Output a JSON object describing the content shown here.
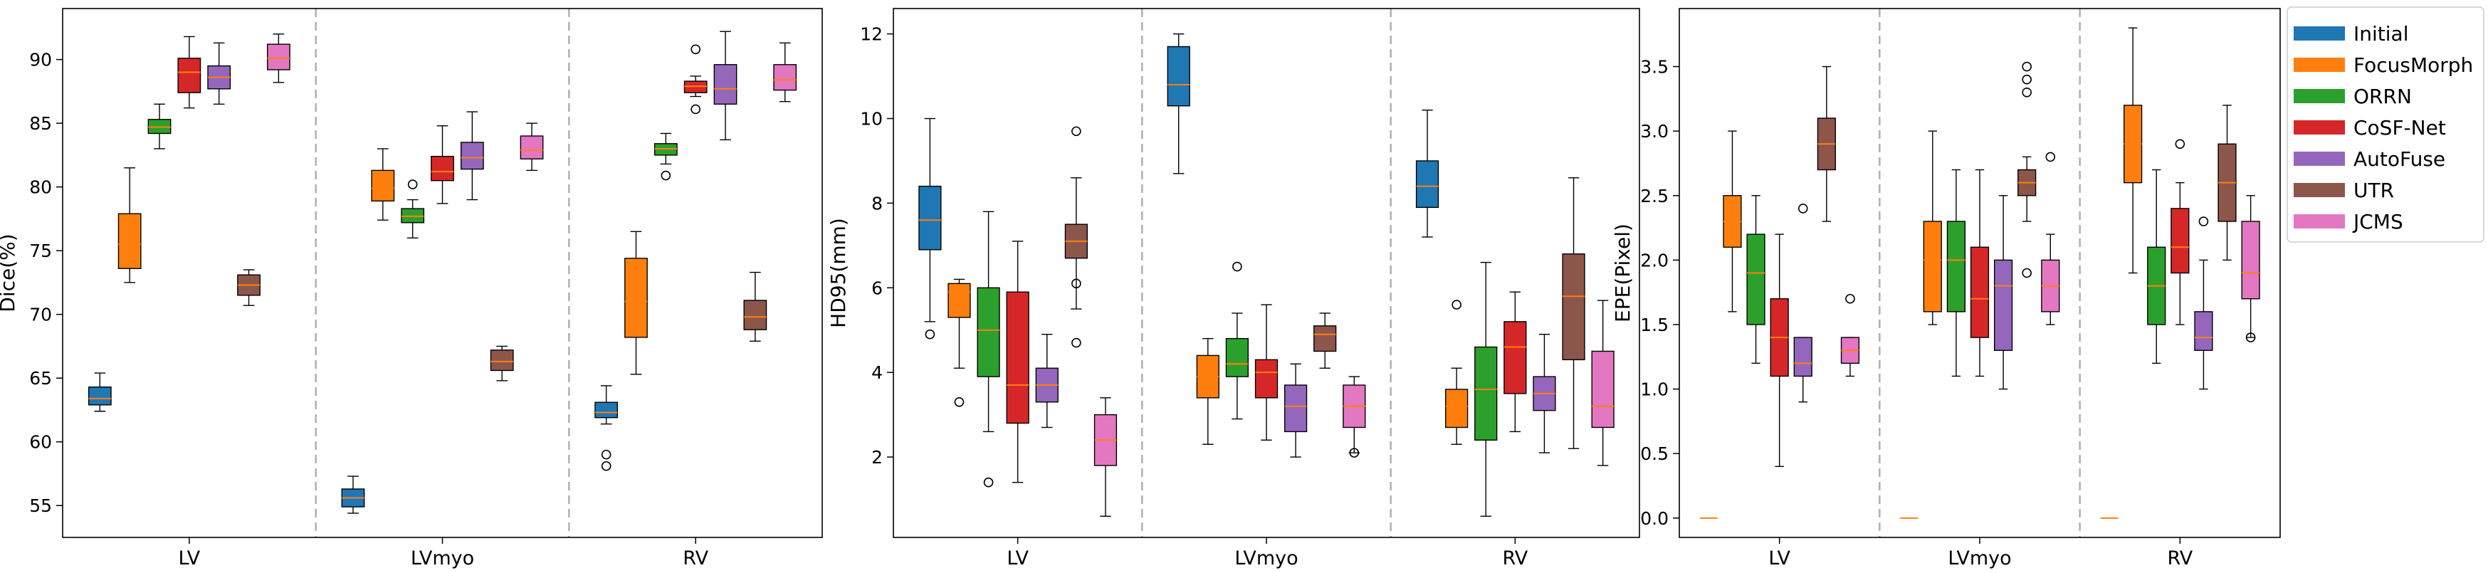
{
  "legend": {
    "placement": "right",
    "entries": [
      {
        "name": "Initial",
        "color": "#1f77b4"
      },
      {
        "name": "FocusMorph",
        "color": "#ff7f0e"
      },
      {
        "name": "ORRN",
        "color": "#2ca02c"
      },
      {
        "name": "CoSF-Net",
        "color": "#d62728"
      },
      {
        "name": "AutoFuse",
        "color": "#9467bd"
      },
      {
        "name": "UTR",
        "color": "#8c564b"
      },
      {
        "name": "JCMS",
        "color": "#e377c2"
      }
    ]
  },
  "chart_data": [
    {
      "type": "box",
      "ylabel": "Dice(%)",
      "xlabel": "",
      "title": "",
      "categories": [
        "LV",
        "LVmyo",
        "RV"
      ],
      "ylim": [
        52.5,
        94
      ],
      "yticks": [
        55,
        60,
        65,
        70,
        75,
        80,
        85,
        90
      ],
      "grid": false,
      "series": [
        {
          "name": "Initial",
          "boxes": [
            {
              "min": 62.4,
              "q1": 62.9,
              "median": 63.4,
              "q3": 64.3,
              "max": 65.4,
              "outliers": []
            },
            {
              "min": 54.4,
              "q1": 54.9,
              "median": 55.6,
              "q3": 56.3,
              "max": 57.3,
              "outliers": []
            },
            {
              "min": 61.4,
              "q1": 61.9,
              "median": 62.3,
              "q3": 63.1,
              "max": 64.4,
              "outliers": [
                59.0,
                58.1
              ]
            }
          ]
        },
        {
          "name": "FocusMorph",
          "boxes": [
            {
              "min": 72.5,
              "q1": 73.6,
              "median": 75.5,
              "q3": 77.9,
              "max": 81.5,
              "outliers": []
            },
            {
              "min": 77.4,
              "q1": 78.9,
              "median": 79.9,
              "q3": 81.3,
              "max": 83.0,
              "outliers": []
            },
            {
              "min": 65.3,
              "q1": 68.2,
              "median": 71.0,
              "q3": 74.4,
              "max": 76.5,
              "outliers": []
            }
          ]
        },
        {
          "name": "ORRN",
          "boxes": [
            {
              "min": 83.0,
              "q1": 84.2,
              "median": 84.7,
              "q3": 85.3,
              "max": 86.5,
              "outliers": []
            },
            {
              "min": 76.0,
              "q1": 77.2,
              "median": 77.7,
              "q3": 78.3,
              "max": 79.0,
              "outliers": [
                80.2
              ]
            },
            {
              "min": 81.8,
              "q1": 82.5,
              "median": 83.0,
              "q3": 83.4,
              "max": 84.2,
              "outliers": [
                80.9
              ]
            }
          ]
        },
        {
          "name": "CoSF-Net",
          "boxes": [
            {
              "min": 86.2,
              "q1": 87.4,
              "median": 89.0,
              "q3": 90.1,
              "max": 91.8,
              "outliers": []
            },
            {
              "min": 78.7,
              "q1": 80.5,
              "median": 81.2,
              "q3": 82.4,
              "max": 84.8,
              "outliers": []
            },
            {
              "min": 87.1,
              "q1": 87.4,
              "median": 87.9,
              "q3": 88.3,
              "max": 88.7,
              "outliers": [
                90.8,
                86.1
              ]
            }
          ]
        },
        {
          "name": "AutoFuse",
          "boxes": [
            {
              "min": 86.5,
              "q1": 87.7,
              "median": 88.6,
              "q3": 89.5,
              "max": 91.3,
              "outliers": []
            },
            {
              "min": 79.0,
              "q1": 81.4,
              "median": 82.3,
              "q3": 83.5,
              "max": 85.9,
              "outliers": []
            },
            {
              "min": 83.7,
              "q1": 86.5,
              "median": 87.7,
              "q3": 89.6,
              "max": 92.2,
              "outliers": []
            }
          ]
        },
        {
          "name": "UTR",
          "boxes": [
            {
              "min": 70.7,
              "q1": 71.5,
              "median": 72.3,
              "q3": 73.1,
              "max": 73.5,
              "outliers": []
            },
            {
              "min": 64.8,
              "q1": 65.6,
              "median": 66.3,
              "q3": 67.2,
              "max": 67.5,
              "outliers": []
            },
            {
              "min": 67.9,
              "q1": 68.8,
              "median": 69.8,
              "q3": 71.1,
              "max": 73.3,
              "outliers": []
            }
          ]
        },
        {
          "name": "JCMS",
          "boxes": [
            {
              "min": 88.2,
              "q1": 89.2,
              "median": 90.1,
              "q3": 91.2,
              "max": 92.0,
              "outliers": []
            },
            {
              "min": 81.3,
              "q1": 82.2,
              "median": 82.9,
              "q3": 84.0,
              "max": 85.0,
              "outliers": []
            },
            {
              "min": 86.7,
              "q1": 87.6,
              "median": 88.4,
              "q3": 89.6,
              "max": 91.3,
              "outliers": []
            }
          ]
        }
      ]
    },
    {
      "type": "box",
      "ylabel": "HD95(mm)",
      "xlabel": "",
      "title": "",
      "categories": [
        "LV",
        "LVmyo",
        "RV"
      ],
      "ylim": [
        0.1,
        12.6
      ],
      "yticks": [
        2,
        4,
        6,
        8,
        10,
        12
      ],
      "grid": false,
      "series": [
        {
          "name": "Initial",
          "boxes": [
            {
              "min": 5.2,
              "q1": 6.9,
              "median": 7.6,
              "q3": 8.4,
              "max": 10.0,
              "outliers": [
                4.9
              ]
            },
            {
              "min": 8.7,
              "q1": 10.3,
              "median": 10.8,
              "q3": 11.7,
              "max": 12.0,
              "outliers": []
            },
            {
              "min": 7.2,
              "q1": 7.9,
              "median": 8.4,
              "q3": 9.0,
              "max": 10.2,
              "outliers": []
            }
          ]
        },
        {
          "name": "FocusMorph",
          "boxes": [
            {
              "min": 4.1,
              "q1": 5.3,
              "median": 5.9,
              "q3": 6.1,
              "max": 6.2,
              "outliers": [
                3.3
              ]
            },
            {
              "min": 2.3,
              "q1": 3.4,
              "median": 3.9,
              "q3": 4.4,
              "max": 4.8,
              "outliers": []
            },
            {
              "min": 2.3,
              "q1": 2.7,
              "median": 3.2,
              "q3": 3.6,
              "max": 4.1,
              "outliers": [
                5.6
              ]
            }
          ]
        },
        {
          "name": "ORRN",
          "boxes": [
            {
              "min": 2.6,
              "q1": 3.9,
              "median": 5.0,
              "q3": 6.0,
              "max": 7.8,
              "outliers": [
                1.4
              ]
            },
            {
              "min": 2.9,
              "q1": 3.9,
              "median": 4.2,
              "q3": 4.8,
              "max": 5.4,
              "outliers": [
                6.5
              ]
            },
            {
              "min": 0.6,
              "q1": 2.4,
              "median": 3.6,
              "q3": 4.6,
              "max": 6.6,
              "outliers": []
            }
          ]
        },
        {
          "name": "CoSF-Net",
          "boxes": [
            {
              "min": 1.4,
              "q1": 2.8,
              "median": 3.7,
              "q3": 5.9,
              "max": 7.1,
              "outliers": []
            },
            {
              "min": 2.4,
              "q1": 3.4,
              "median": 4.0,
              "q3": 4.3,
              "max": 5.6,
              "outliers": []
            },
            {
              "min": 2.6,
              "q1": 3.5,
              "median": 4.6,
              "q3": 5.2,
              "max": 5.9,
              "outliers": []
            }
          ]
        },
        {
          "name": "AutoFuse",
          "boxes": [
            {
              "min": 2.7,
              "q1": 3.3,
              "median": 3.7,
              "q3": 4.1,
              "max": 4.9,
              "outliers": []
            },
            {
              "min": 2.0,
              "q1": 2.6,
              "median": 3.2,
              "q3": 3.7,
              "max": 4.2,
              "outliers": []
            },
            {
              "min": 2.1,
              "q1": 3.1,
              "median": 3.5,
              "q3": 3.9,
              "max": 4.9,
              "outliers": []
            }
          ]
        },
        {
          "name": "UTR",
          "boxes": [
            {
              "min": 5.5,
              "q1": 6.7,
              "median": 7.1,
              "q3": 7.5,
              "max": 8.6,
              "outliers": [
                9.7,
                4.7,
                6.1
              ]
            },
            {
              "min": 4.1,
              "q1": 4.5,
              "median": 4.9,
              "q3": 5.1,
              "max": 5.4,
              "outliers": []
            },
            {
              "min": 2.2,
              "q1": 4.3,
              "median": 5.8,
              "q3": 6.8,
              "max": 8.6,
              "outliers": []
            }
          ]
        },
        {
          "name": "JCMS",
          "boxes": [
            {
              "min": 0.6,
              "q1": 1.8,
              "median": 2.4,
              "q3": 3.0,
              "max": 3.4,
              "outliers": []
            },
            {
              "min": 2.1,
              "q1": 2.7,
              "median": 3.2,
              "q3": 3.7,
              "max": 3.9,
              "outliers": [
                2.1
              ]
            },
            {
              "min": 1.8,
              "q1": 2.7,
              "median": 3.2,
              "q3": 4.5,
              "max": 5.7,
              "outliers": []
            }
          ]
        }
      ]
    },
    {
      "type": "box",
      "ylabel": "EPE(Pixel)",
      "xlabel": "",
      "title": "",
      "categories": [
        "LV",
        "LVmyo",
        "RV"
      ],
      "ylim": [
        -0.15,
        3.95
      ],
      "yticks": [
        0.0,
        0.5,
        1.0,
        1.5,
        2.0,
        2.5,
        3.0,
        3.5
      ],
      "grid": false,
      "series": [
        {
          "name": "Initial",
          "boxes": [
            {
              "min": 0,
              "q1": 0,
              "median": 0,
              "q3": 0,
              "max": 0,
              "outliers": []
            },
            {
              "min": 0,
              "q1": 0,
              "median": 0,
              "q3": 0,
              "max": 0,
              "outliers": []
            },
            {
              "min": 0,
              "q1": 0,
              "median": 0,
              "q3": 0,
              "max": 0,
              "outliers": []
            }
          ]
        },
        {
          "name": "FocusMorph",
          "boxes": [
            {
              "min": 1.6,
              "q1": 2.1,
              "median": 2.3,
              "q3": 2.5,
              "max": 3.0,
              "outliers": []
            },
            {
              "min": 1.5,
              "q1": 1.6,
              "median": 2.0,
              "q3": 2.3,
              "max": 3.0,
              "outliers": []
            },
            {
              "min": 1.9,
              "q1": 2.6,
              "median": 2.9,
              "q3": 3.2,
              "max": 3.8,
              "outliers": []
            }
          ]
        },
        {
          "name": "ORRN",
          "boxes": [
            {
              "min": 1.2,
              "q1": 1.5,
              "median": 1.9,
              "q3": 2.2,
              "max": 2.5,
              "outliers": []
            },
            {
              "min": 1.1,
              "q1": 1.6,
              "median": 2.0,
              "q3": 2.3,
              "max": 2.7,
              "outliers": []
            },
            {
              "min": 1.2,
              "q1": 1.5,
              "median": 1.8,
              "q3": 2.1,
              "max": 2.7,
              "outliers": []
            }
          ]
        },
        {
          "name": "CoSF-Net",
          "boxes": [
            {
              "min": 0.4,
              "q1": 1.1,
              "median": 1.4,
              "q3": 1.7,
              "max": 2.2,
              "outliers": []
            },
            {
              "min": 1.1,
              "q1": 1.4,
              "median": 1.7,
              "q3": 2.1,
              "max": 2.7,
              "outliers": []
            },
            {
              "min": 1.5,
              "q1": 1.9,
              "median": 2.1,
              "q3": 2.4,
              "max": 2.6,
              "outliers": [
                2.9
              ]
            }
          ]
        },
        {
          "name": "AutoFuse",
          "boxes": [
            {
              "min": 0.9,
              "q1": 1.1,
              "median": 1.2,
              "q3": 1.4,
              "max": 1.4,
              "outliers": [
                2.4
              ]
            },
            {
              "min": 1.0,
              "q1": 1.3,
              "median": 1.8,
              "q3": 2.0,
              "max": 2.5,
              "outliers": []
            },
            {
              "min": 1.0,
              "q1": 1.3,
              "median": 1.4,
              "q3": 1.6,
              "max": 2.0,
              "outliers": [
                2.3
              ]
            }
          ]
        },
        {
          "name": "UTR",
          "boxes": [
            {
              "min": 2.3,
              "q1": 2.7,
              "median": 2.9,
              "q3": 3.1,
              "max": 3.5,
              "outliers": []
            },
            {
              "min": 2.3,
              "q1": 2.5,
              "median": 2.6,
              "q3": 2.7,
              "max": 2.8,
              "outliers": [
                3.5,
                3.4,
                3.3,
                1.9
              ]
            },
            {
              "min": 2.0,
              "q1": 2.3,
              "median": 2.6,
              "q3": 2.9,
              "max": 3.2,
              "outliers": []
            }
          ]
        },
        {
          "name": "JCMS",
          "boxes": [
            {
              "min": 1.1,
              "q1": 1.2,
              "median": 1.3,
              "q3": 1.4,
              "max": 1.4,
              "outliers": [
                1.7
              ]
            },
            {
              "min": 1.5,
              "q1": 1.6,
              "median": 1.8,
              "q3": 2.0,
              "max": 2.2,
              "outliers": [
                2.8
              ]
            },
            {
              "min": 1.4,
              "q1": 1.7,
              "median": 1.9,
              "q3": 2.3,
              "max": 2.5,
              "outliers": [
                1.4
              ]
            }
          ]
        }
      ]
    }
  ]
}
